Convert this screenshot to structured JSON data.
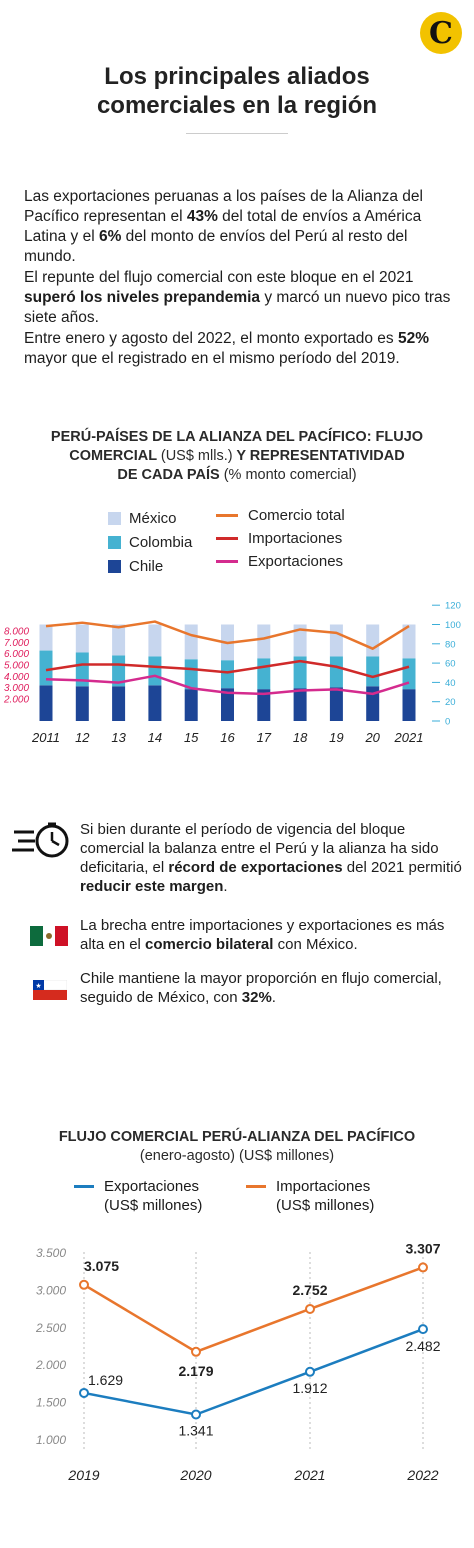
{
  "logo": {
    "letter": "C"
  },
  "header": {
    "title_line1": "Los principales aliados",
    "title_line2": "comerciales en la región"
  },
  "intro": {
    "p1": {
      "a": "Las exportaciones peruanas a los países de la Alianza del Pacífico representan el ",
      "b1": "43%",
      "c": " del total de envíos a América Latina y el ",
      "b2": "6%",
      "d": " del monto de envíos del Perú al resto del mundo."
    },
    "p2": {
      "a": "El repunte del flujo comercial con este bloque en el 2021 ",
      "b1": "superó los niveles prepandemia",
      "c": " y marcó un nuevo pico tras siete años."
    },
    "p3": {
      "a": "Entre enero y agosto del 2022, el monto exportado es ",
      "b1": "52%",
      "c": " mayor que el registrado en el mismo período del 2019."
    }
  },
  "chart1_title": {
    "l1": "PERÚ-PAÍSES DE LA ALIANZA DEL PACÍFICO: FLUJO",
    "l2a": "COMERCIAL ",
    "l2b": "(US$ mlls.)",
    "l2c": " Y REPRESENTATIVIDAD",
    "l3a": "DE CADA PAÍS ",
    "l3b": "(% monto comercial)"
  },
  "chart1_legend": {
    "mexico": "México",
    "colombia": "Colombia",
    "chile": "Chile",
    "total": "Comercio total",
    "imports": "Importaciones",
    "exports": "Exportaciones"
  },
  "notes": {
    "n1": {
      "a": "Si bien durante el período de vigencia del bloque comercial la balanza entre el Perú y la alianza ha sido deficitaria, el ",
      "b1": "récord de exportaciones",
      "c": " del 2021 permitió ",
      "b2": "reducir este margen",
      "d": "."
    },
    "n2": {
      "a": "La brecha entre importaciones y exportaciones es más alta en el ",
      "b1": "comercio bilateral",
      "c": " con México."
    },
    "n3": {
      "a": "Chile mantiene la mayor proporción en flujo comercial, seguido de México, con ",
      "b1": "32%",
      "c": "."
    }
  },
  "chart2_title": {
    "l1": "FLUJO COMERCIAL PERÚ-ALIANZA DEL PACÍFICO",
    "l2": "(enero-agosto) (US$ millones)"
  },
  "chart2_legend": {
    "exports_l1": "Exportaciones",
    "exports_l2": "(US$ millones)",
    "imports_l1": "Importaciones",
    "imports_l2": "(US$ millones)"
  },
  "colors": {
    "chile": "#1d4596",
    "colombia": "#45b2d1",
    "mexico": "#c7d6ee",
    "total": "#e8762d",
    "imports": "#d02a2a",
    "exports": "#d42b8e",
    "axis_left": "#e0205f",
    "axis_right": "#3aaed8",
    "c2_exports": "#1c7dbf",
    "c2_imports": "#e8762d"
  },
  "chart_data": [
    {
      "type": "bar",
      "categories": [
        "2011",
        "12",
        "13",
        "14",
        "15",
        "16",
        "17",
        "18",
        "19",
        "20",
        "2021"
      ],
      "left_axis_ticks": [
        "2.000",
        "3.000",
        "4.000",
        "5.000",
        "6.000",
        "7.000",
        "8.000"
      ],
      "right_axis_ticks": [
        "0",
        "20",
        "40",
        "60",
        "80",
        "100",
        "120"
      ],
      "ylim_left": [
        0,
        9000
      ],
      "ylim_right": [
        0,
        120
      ],
      "stacked_percent_series": [
        {
          "name": "Chile",
          "values": [
            37,
            36,
            36,
            37,
            33,
            34,
            33,
            34,
            35,
            36,
            33
          ]
        },
        {
          "name": "Colombia",
          "values": [
            36,
            35,
            32,
            30,
            31,
            29,
            32,
            33,
            32,
            31,
            32
          ]
        },
        {
          "name": "México",
          "values": [
            27,
            29,
            32,
            33,
            36,
            37,
            35,
            33,
            33,
            33,
            35
          ]
        }
      ],
      "line_series": [
        {
          "name": "Comercio total",
          "values": [
            8400,
            8700,
            8300,
            8800,
            7600,
            6900,
            7300,
            8100,
            7800,
            6400,
            8400
          ]
        },
        {
          "name": "Importaciones",
          "values": [
            4500,
            5000,
            5000,
            4800,
            4600,
            4300,
            4800,
            5300,
            4800,
            3900,
            4800
          ]
        },
        {
          "name": "Exportaciones",
          "values": [
            3700,
            3600,
            3400,
            4000,
            2900,
            2500,
            2400,
            2700,
            2800,
            2400,
            3400
          ]
        }
      ]
    },
    {
      "type": "line",
      "x": [
        "2019",
        "2020",
        "2021",
        "2022"
      ],
      "y_ticks": [
        "1.000",
        "1.500",
        "2.000",
        "2.500",
        "3.000",
        "3.500"
      ],
      "ylim": [
        1000,
        3500
      ],
      "series": [
        {
          "name": "Exportaciones (US$ millones)",
          "values": [
            1629,
            1341,
            1912,
            2482
          ],
          "labels": [
            "1.629",
            "1.341",
            "1.912",
            "2.482"
          ]
        },
        {
          "name": "Importaciones (US$ millones)",
          "values": [
            3075,
            2179,
            2752,
            3307
          ],
          "labels": [
            "3.075",
            "2.179",
            "2.752",
            "3.307"
          ]
        }
      ]
    }
  ]
}
